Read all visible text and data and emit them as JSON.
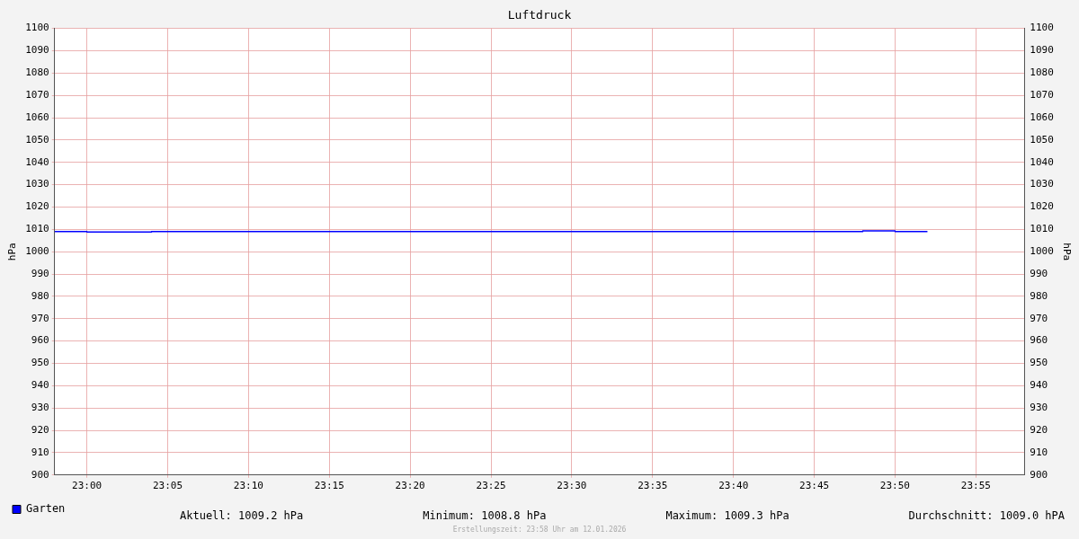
{
  "chart_data": {
    "type": "step",
    "title": "Luftdruck",
    "ylabel": "hPa",
    "y2label": "hPa",
    "x": [
      22.9667,
      23.0,
      23.0667,
      23.8,
      23.8333,
      23.8667
    ],
    "series": [
      {
        "name": "Garten",
        "color": "#0000ff",
        "values": [
          1009.0,
          1008.8,
          1009.0,
          1009.3,
          1009.0,
          1009.0
        ]
      }
    ],
    "xlim": [
      22.9667,
      23.9667
    ],
    "xticks": [
      {
        "value": 23.0,
        "label": "23:00"
      },
      {
        "value": 23.0833,
        "label": "23:05"
      },
      {
        "value": 23.1667,
        "label": "23:10"
      },
      {
        "value": 23.25,
        "label": "23:15"
      },
      {
        "value": 23.3333,
        "label": "23:20"
      },
      {
        "value": 23.4167,
        "label": "23:25"
      },
      {
        "value": 23.5,
        "label": "23:30"
      },
      {
        "value": 23.5833,
        "label": "23:35"
      },
      {
        "value": 23.6667,
        "label": "23:40"
      },
      {
        "value": 23.75,
        "label": "23:45"
      },
      {
        "value": 23.8333,
        "label": "23:50"
      },
      {
        "value": 23.9167,
        "label": "23:55"
      }
    ],
    "ylim": [
      900,
      1100
    ],
    "yticks": [
      900,
      910,
      920,
      930,
      940,
      950,
      960,
      970,
      980,
      990,
      1000,
      1010,
      1020,
      1030,
      1040,
      1050,
      1060,
      1070,
      1080,
      1090,
      1100
    ],
    "y2lim": [
      900,
      1100
    ],
    "y2ticks": [
      900,
      910,
      920,
      930,
      940,
      950,
      960,
      970,
      980,
      990,
      1000,
      1010,
      1020,
      1030,
      1040,
      1050,
      1060,
      1070,
      1080,
      1090,
      1100
    ],
    "grid": true,
    "legend": "bottom left",
    "marker": "none",
    "line_style": "solid",
    "annotations": [
      "Aktuell: 1009.2 hPa",
      "Minimum: 1008.8 hPa",
      "Maximum: 1009.3 hPa",
      "Durchschnitt: 1009.0 hPA",
      "Erstellungszeit: 23:58 Uhr am 12.01.2026"
    ]
  }
}
